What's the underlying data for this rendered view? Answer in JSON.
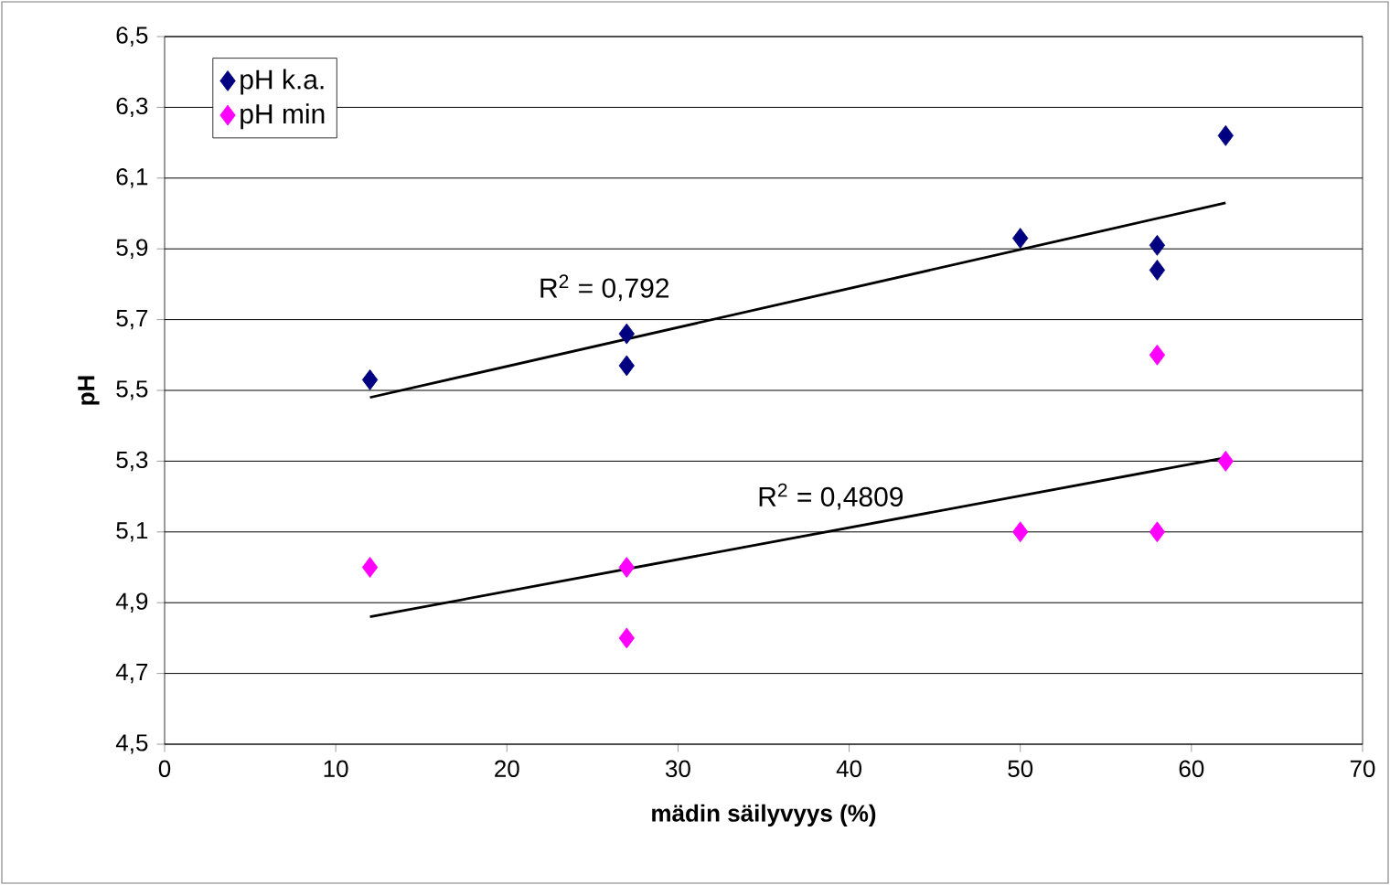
{
  "chart_data": {
    "type": "scatter",
    "xlabel": "mädin säilyvyys (%)",
    "ylabel": "pH",
    "series": [
      {
        "name": "pH k.a.",
        "color": "#000080",
        "x": [
          12,
          27,
          27,
          50,
          58,
          58,
          62
        ],
        "values": [
          5.53,
          5.66,
          5.57,
          5.93,
          5.91,
          5.84,
          6.22
        ]
      },
      {
        "name": "pH min",
        "color": "#ff00ff",
        "x": [
          12,
          27,
          27,
          50,
          58,
          58,
          62
        ],
        "values": [
          5.0,
          5.0,
          4.8,
          5.1,
          5.6,
          5.1,
          5.3
        ]
      },
      {
        "type": "line",
        "marker": "none",
        "color": "#000000",
        "x": [
          12,
          62
        ],
        "values": [
          5.48,
          6.03
        ]
      },
      {
        "type": "line",
        "marker": "none",
        "color": "#000000",
        "x": [
          12,
          62
        ],
        "values": [
          4.86,
          5.31
        ]
      }
    ],
    "annotations": [
      "R$^{2}$ = 0,792",
      "R$^{2}$ = 0,4809"
    ],
    "xlim": [
      0,
      70
    ],
    "xticks": [
      0,
      10,
      20,
      30,
      40,
      50,
      60,
      70
    ],
    "ylim": [
      4.5,
      6.5
    ],
    "yticks": [
      {
        "value": 4.5,
        "label": "4,5"
      },
      {
        "value": 4.7,
        "label": "4,7"
      },
      {
        "value": 4.9,
        "label": "4,9"
      },
      {
        "value": 5.1,
        "label": "5,1"
      },
      {
        "value": 5.3,
        "label": "5,3"
      },
      {
        "value": 5.5,
        "label": "5,5"
      },
      {
        "value": 5.7,
        "label": "5,7"
      },
      {
        "value": 5.9,
        "label": "5,9"
      },
      {
        "value": 6.1,
        "label": "6,1"
      },
      {
        "value": 6.3,
        "label": "6,3"
      },
      {
        "value": 6.5,
        "label": "6,5"
      }
    ],
    "grid": "y",
    "legend": "top left",
    "marker": "diamond",
    "line_style": "solid"
  }
}
